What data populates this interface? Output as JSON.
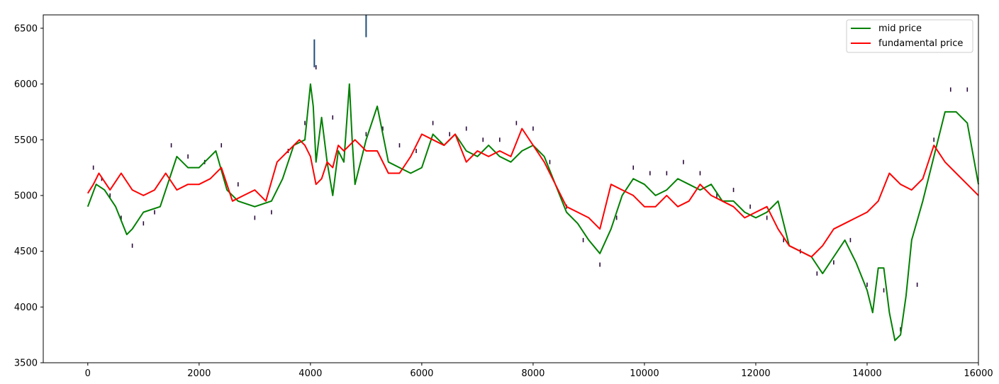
{
  "chart_data": {
    "type": "line",
    "title": "",
    "xlabel": "",
    "ylabel": "",
    "xlim": [
      -800,
      16000
    ],
    "ylim": [
      3500,
      6620
    ],
    "x_ticks": [
      0,
      2000,
      4000,
      6000,
      8000,
      10000,
      12000,
      14000,
      16000
    ],
    "y_ticks": [
      3500,
      4000,
      4500,
      5000,
      5500,
      6000,
      6500
    ],
    "x_tick_labels": [
      "0",
      "2000",
      "4000",
      "6000",
      "8000",
      "10000",
      "12000",
      "14000",
      "16000"
    ],
    "y_tick_labels": [
      "3500",
      "4000",
      "4500",
      "5000",
      "5500",
      "6000",
      "6500"
    ],
    "grid": false,
    "legend_position": "top-right",
    "series": [
      {
        "name": "mid price",
        "color": "#008000",
        "x": [
          0,
          150,
          300,
          500,
          700,
          800,
          1000,
          1300,
          1500,
          1600,
          1800,
          2000,
          2200,
          2300,
          2500,
          2700,
          3000,
          3300,
          3500,
          3700,
          3900,
          4000,
          4050,
          4100,
          4200,
          4300,
          4400,
          4500,
          4600,
          4700,
          4750,
          4800,
          5000,
          5200,
          5400,
          5600,
          5800,
          6000,
          6200,
          6400,
          6600,
          6800,
          7000,
          7200,
          7400,
          7600,
          7800,
          8000,
          8200,
          8400,
          8600,
          8800,
          9000,
          9200,
          9400,
          9600,
          9800,
          10000,
          10200,
          10400,
          10600,
          10800,
          11000,
          11200,
          11400,
          11600,
          11800,
          12000,
          12200,
          12400,
          12600,
          12800,
          13000,
          13200,
          13400,
          13600,
          13800,
          14000,
          14100,
          14200,
          14300,
          14400,
          14500,
          14600,
          14700,
          14800,
          15000,
          15200,
          15400,
          15600,
          15800,
          16000
        ],
        "values": [
          4900,
          5100,
          5050,
          4900,
          4650,
          4700,
          4850,
          4900,
          5200,
          5350,
          5250,
          5250,
          5350,
          5400,
          5050,
          4950,
          4900,
          4950,
          5150,
          5450,
          5500,
          6000,
          5800,
          5300,
          5700,
          5300,
          5000,
          5400,
          5300,
          6000,
          5500,
          5100,
          5500,
          5800,
          5300,
          5250,
          5200,
          5250,
          5550,
          5450,
          5550,
          5400,
          5350,
          5450,
          5350,
          5300,
          5400,
          5450,
          5350,
          5100,
          4850,
          4750,
          4600,
          4480,
          4700,
          5000,
          5150,
          5100,
          5000,
          5050,
          5150,
          5100,
          5050,
          5100,
          4950,
          4950,
          4850,
          4800,
          4850,
          4950,
          4550,
          4500,
          4450,
          4300,
          4450,
          4600,
          4400,
          4150,
          3950,
          4350,
          4350,
          3950,
          3700,
          3750,
          4100,
          4600,
          4950,
          5350,
          5750,
          5750,
          5650,
          5100
        ]
      },
      {
        "name": "fundamental price",
        "color": "#ff0000",
        "x": [
          0,
          100,
          200,
          400,
          600,
          800,
          1000,
          1200,
          1400,
          1600,
          1800,
          2000,
          2200,
          2400,
          2600,
          2800,
          3000,
          3200,
          3400,
          3600,
          3800,
          3900,
          4000,
          4100,
          4200,
          4300,
          4400,
          4500,
          4600,
          4800,
          5000,
          5200,
          5400,
          5600,
          5800,
          6000,
          6200,
          6400,
          6600,
          6800,
          7000,
          7200,
          7400,
          7600,
          7800,
          8000,
          8200,
          8400,
          8600,
          8800,
          9000,
          9200,
          9400,
          9600,
          9800,
          10000,
          10200,
          10400,
          10600,
          10800,
          11000,
          11200,
          11400,
          11600,
          11800,
          12000,
          12200,
          12400,
          12600,
          12800,
          13000,
          13200,
          13400,
          13600,
          13800,
          14000,
          14200,
          14400,
          14600,
          14800,
          15000,
          15200,
          15400,
          15600,
          15800,
          16000
        ],
        "values": [
          5020,
          5100,
          5200,
          5050,
          5200,
          5050,
          5000,
          5050,
          5200,
          5050,
          5100,
          5100,
          5150,
          5250,
          4950,
          5000,
          5050,
          4950,
          5300,
          5400,
          5500,
          5450,
          5350,
          5100,
          5150,
          5300,
          5250,
          5450,
          5400,
          5500,
          5400,
          5400,
          5200,
          5200,
          5350,
          5550,
          5500,
          5450,
          5550,
          5300,
          5400,
          5350,
          5400,
          5350,
          5600,
          5450,
          5300,
          5100,
          4900,
          4850,
          4800,
          4700,
          5100,
          5050,
          5000,
          4900,
          4900,
          5000,
          4900,
          4950,
          5100,
          5000,
          4950,
          4900,
          4800,
          4850,
          4900,
          4700,
          4550,
          4500,
          4450,
          4550,
          4700,
          4750,
          4800,
          4850,
          4950,
          5200,
          5100,
          5050,
          5150,
          5450,
          5300,
          5200,
          5100,
          5000
        ]
      }
    ],
    "scatter_marks": {
      "name": "",
      "color": "#2b0a3d",
      "x": [
        100,
        250,
        400,
        600,
        800,
        1000,
        1200,
        1500,
        1800,
        2100,
        2400,
        2700,
        3000,
        3300,
        3600,
        3900,
        4100,
        4400,
        4700,
        5000,
        5300,
        5600,
        5900,
        6200,
        6500,
        6800,
        7100,
        7400,
        7700,
        8000,
        8300,
        8600,
        8900,
        9200,
        9500,
        9800,
        10100,
        10400,
        10700,
        11000,
        11300,
        11600,
        11900,
        12200,
        12500,
        12800,
        13100,
        13400,
        13700,
        14000,
        14300,
        14600,
        14900,
        15200,
        15500,
        15800
      ],
      "values": [
        5250,
        5150,
        5000,
        4800,
        4550,
        4750,
        4850,
        5450,
        5350,
        5300,
        5450,
        5100,
        4800,
        4850,
        5400,
        5650,
        6150,
        5700,
        5950,
        5550,
        5600,
        5450,
        5400,
        5650,
        5550,
        5600,
        5500,
        5500,
        5650,
        5600,
        5300,
        4900,
        4600,
        4380,
        4800,
        5250,
        5200,
        5200,
        5300,
        5200,
        5000,
        5050,
        4900,
        4800,
        4600,
        4500,
        4300,
        4400,
        4600,
        4200,
        4150,
        3800,
        4200,
        5500,
        5950,
        5950
      ]
    },
    "vertical_markers": [
      {
        "x": 4070,
        "y_from": 6400,
        "y_to": 6150,
        "color": "#1f4e79"
      },
      {
        "x": 5000,
        "y_from": 6620,
        "y_to": 6420,
        "color": "#1f4e79"
      }
    ],
    "legend": {
      "entries": [
        {
          "label": "mid price",
          "color": "#008000"
        },
        {
          "label": "fundamental price",
          "color": "#ff0000"
        }
      ]
    }
  }
}
